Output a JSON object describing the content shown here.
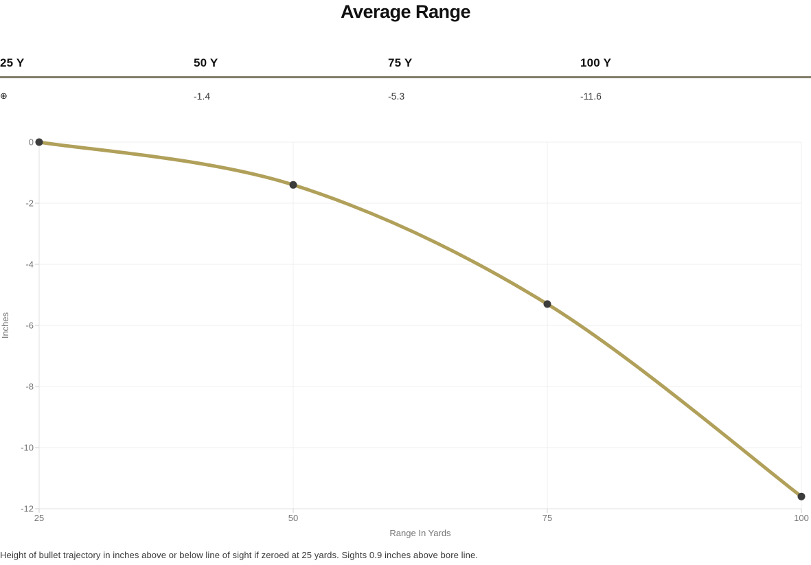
{
  "title": "Average Range",
  "table": {
    "columns": [
      {
        "header": "25 Y",
        "value": "⊕"
      },
      {
        "header": "50 Y",
        "value": "-1.4"
      },
      {
        "header": "75 Y",
        "value": "-5.3"
      },
      {
        "header": "100 Y",
        "value": "-11.6"
      }
    ]
  },
  "caption": "Height of bullet trajectory in inches above or below line of sight if zeroed at 25 yards. Sights 0.9 inches above bore line.",
  "colors": {
    "divider": "#827d68",
    "line": "#b0a05a",
    "point": "#3c3c3c",
    "grid": "#efefef",
    "axis": "#e2e2e2",
    "tick": "#cfcfcf",
    "tick_label": "#757575"
  },
  "chart_data": {
    "type": "line",
    "x": [
      25,
      50,
      75,
      100
    ],
    "series": [
      {
        "name": "Average Range",
        "values": [
          0,
          -1.4,
          -5.3,
          -11.6
        ]
      }
    ],
    "title": "Average Range",
    "xlabel": "Range In Yards",
    "ylabel": "Inches",
    "xlim": [
      25,
      100
    ],
    "ylim": [
      -12,
      0
    ],
    "xticks": [
      25,
      50,
      75,
      100
    ],
    "yticks": [
      0,
      -2,
      -4,
      -6,
      -8,
      -10,
      -12
    ],
    "grid": true,
    "legend": false,
    "curve": "smooth",
    "zero_marker": "⊕ at 25 yards"
  }
}
